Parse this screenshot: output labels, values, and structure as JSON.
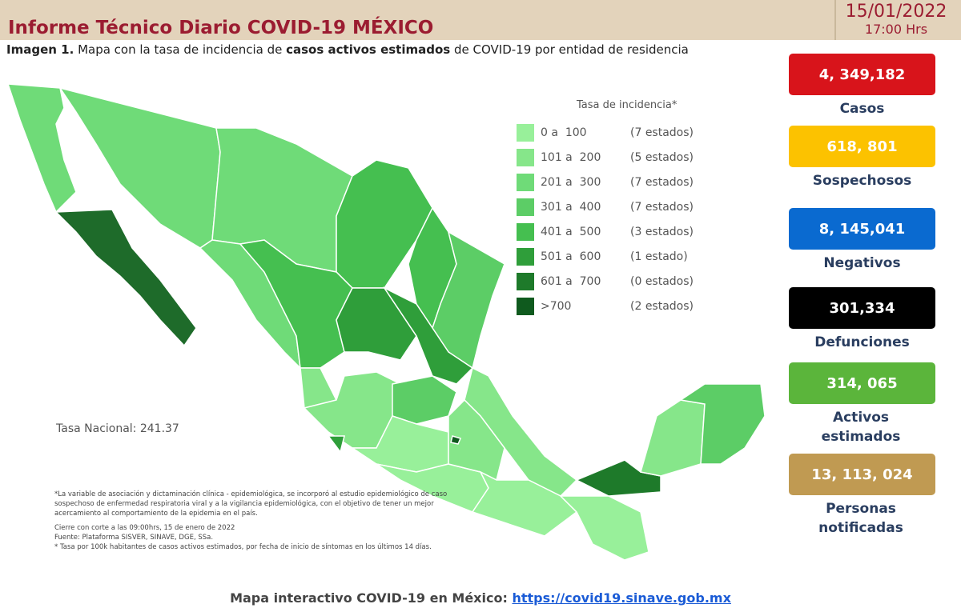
{
  "header": {
    "title": "Informe Técnico Diario COVID-19 MÉXICO",
    "date": "15/01/2022",
    "time": "17:00 Hrs"
  },
  "caption": {
    "label": "Imagen 1.",
    "parts": [
      "Mapa con la tasa de incidencia de ",
      "casos activos estimados",
      " de COVID-19 por entidad de residencia"
    ]
  },
  "legend": {
    "title": "Tasa de incidencia*",
    "rows": [
      {
        "range": "0 a  100",
        "count": "(7 estados)",
        "color": "#98f09a"
      },
      {
        "range": "101 a  200",
        "count": "(5 estados)",
        "color": "#86e68a"
      },
      {
        "range": "201 a  300",
        "count": "(7 estados)",
        "color": "#6fdb78"
      },
      {
        "range": "301 a  400",
        "count": "(7 estados)",
        "color": "#5ccd66"
      },
      {
        "range": "401 a  500",
        "count": "(3 estados)",
        "color": "#45bf50"
      },
      {
        "range": "501 a  600",
        "count": "(1 estado)",
        "color": "#2f9e3a"
      },
      {
        "range": "601 a  700",
        "count": "(0 estados)",
        "color": "#1e7a2a"
      },
      {
        "range": ">700",
        "count": "(2 estados)",
        "color": "#0f5a1e"
      }
    ]
  },
  "national_rate": "Tasa Nacional: 241.37",
  "notes": [
    "*La variable de asociación y dictaminación clínica - epidemiológica, se incorporó al estudio epidemiológico de caso sospechoso de enfermedad respiratoria viral y a la vigilancia epidemiológica, con el objetivo de tener un mejor acercamiento al comportamiento de la epidemia en el país.",
    "Cierre con corte a las 09:00hrs, 15 de enero de 2022",
    "Fuente: Plataforma SISVER, SINAVE, DGE, SSa.",
    "* Tasa por 100k habitantes de casos activos estimados, por fecha de inicio de síntomas en los últimos 14 días."
  ],
  "stats": [
    {
      "value": "4, 349,182",
      "label": "Casos",
      "color": "#d8141b"
    },
    {
      "value": "618, 801",
      "label": "Sospechosos",
      "color": "#fcc200"
    },
    {
      "value": "8, 145,041",
      "label": "Negativos",
      "color": "#0a6ad0"
    },
    {
      "value": "301,334",
      "label": "Defunciones",
      "color": "#000000"
    },
    {
      "value": "314, 065",
      "label": "Activos estimados",
      "color": "#5bb53b"
    },
    {
      "value": "13, 113, 024",
      "label": "Personas notificadas",
      "color": "#c09a52"
    }
  ],
  "footer": {
    "text": "Mapa interactivo COVID-19 en México:",
    "link": "https://covid19.sinave.gob.mx"
  }
}
